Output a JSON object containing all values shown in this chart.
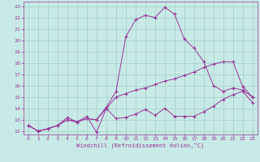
{
  "bg_color": "#c8eae6",
  "grid_color": "#a0cec8",
  "line_color": "#993399",
  "xlim_min": -0.5,
  "xlim_max": 23.5,
  "ylim_min": 11.7,
  "ylim_max": 23.4,
  "xticks": [
    0,
    1,
    2,
    3,
    4,
    5,
    6,
    7,
    8,
    9,
    10,
    11,
    12,
    13,
    14,
    15,
    16,
    17,
    18,
    19,
    20,
    21,
    22,
    23
  ],
  "yticks": [
    12,
    13,
    14,
    15,
    16,
    17,
    18,
    19,
    20,
    21,
    22,
    23
  ],
  "line1_x": [
    0,
    1,
    2,
    3,
    4,
    5,
    6,
    7,
    8,
    9,
    10,
    11,
    12,
    13,
    14,
    15,
    16,
    17,
    18,
    19,
    20,
    21,
    22,
    23
  ],
  "line1_y": [
    12.5,
    12.0,
    12.2,
    12.5,
    13.0,
    12.8,
    13.1,
    13.0,
    14.0,
    15.0,
    15.3,
    15.6,
    15.8,
    16.1,
    16.4,
    16.6,
    16.9,
    17.2,
    17.6,
    17.9,
    18.1,
    18.1,
    15.9,
    15.0
  ],
  "line2_x": [
    0,
    1,
    2,
    3,
    4,
    5,
    6,
    7,
    8,
    9,
    10,
    11,
    12,
    13,
    14,
    15,
    16,
    17,
    18,
    19,
    20,
    21,
    22,
    23
  ],
  "line2_y": [
    12.5,
    12.0,
    12.2,
    12.5,
    13.0,
    12.8,
    13.1,
    13.0,
    14.1,
    15.5,
    20.3,
    21.8,
    22.2,
    22.0,
    22.9,
    22.3,
    20.1,
    19.3,
    18.1,
    16.0,
    15.5,
    15.8,
    15.6,
    15.0
  ],
  "line3_x": [
    0,
    1,
    2,
    3,
    4,
    5,
    6,
    7,
    8,
    9,
    10,
    11,
    12,
    13,
    14,
    15,
    16,
    17,
    18,
    19,
    20,
    21,
    22,
    23
  ],
  "line3_y": [
    12.5,
    12.0,
    12.2,
    12.5,
    13.2,
    12.8,
    13.3,
    11.9,
    14.0,
    13.1,
    13.2,
    13.5,
    13.9,
    13.4,
    14.0,
    13.3,
    13.3,
    13.3,
    13.7,
    14.2,
    14.8,
    15.2,
    15.5,
    14.5
  ],
  "xlabel": "Windchill (Refroidissement éolien,°C)"
}
